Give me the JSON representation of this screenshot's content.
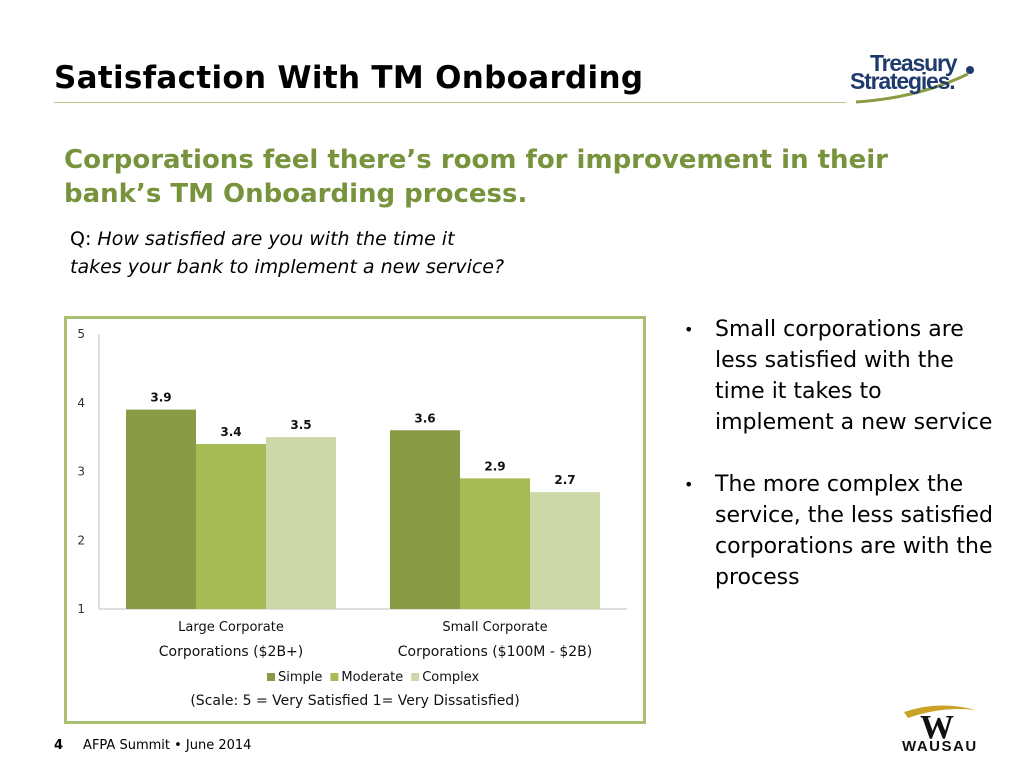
{
  "slide": {
    "title": "Satisfaction With TM Onboarding",
    "headline": "Corporations feel there’s room for improvement in their bank’s TM Onboarding process.",
    "question_prefix": "Q: ",
    "question_text": "How satisfied are you with the time it takes your bank to implement a new service?",
    "bullets": [
      "Small corporations are less satisfied with the time it takes to implement a new service",
      "The more complex the service, the less satisfied corporations are with the process"
    ],
    "footer": {
      "page": "4",
      "event": "AFPA Summit • June 2014"
    },
    "logos": {
      "top_right_line1": "Treasury",
      "top_right_line2": "Strategies.",
      "bottom_right": "WAUSAU"
    }
  },
  "chart_data": {
    "type": "bar",
    "categories": [
      [
        "Large Corporate",
        "Corporations ($2B+)"
      ],
      [
        "Small Corporate",
        "Corporations ($100M - $2B)"
      ]
    ],
    "series": [
      {
        "name": "Simple",
        "values": [
          3.9,
          3.6
        ],
        "color": "#8a9b45"
      },
      {
        "name": "Moderate",
        "values": [
          3.4,
          2.9
        ],
        "color": "#a6bb55"
      },
      {
        "name": "Complex",
        "values": [
          3.5,
          2.7
        ],
        "color": "#ccd8a8"
      }
    ],
    "ylim": [
      1,
      5
    ],
    "yticks": [
      "1",
      "2",
      "3",
      "4",
      "5"
    ],
    "grid": false,
    "legend": "bottom",
    "note": "(Scale: 5 = Very Satisfied  1= Very Dissatisfied)",
    "data_labels": true
  }
}
